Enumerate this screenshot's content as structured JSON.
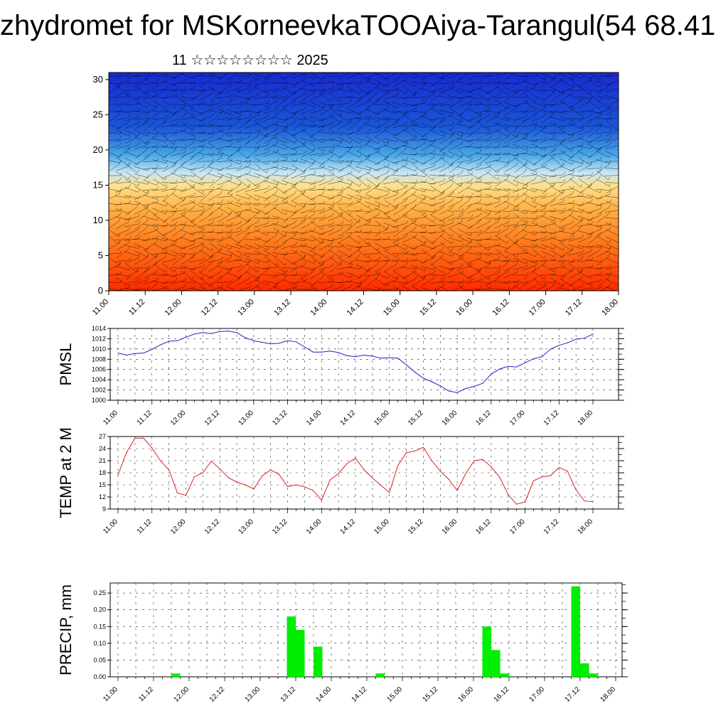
{
  "title": "zhydromet for MSKorneevkaTOOAiya-Tarangul(54 68.41",
  "subtitle": "11 ☆☆☆☆☆☆☆☆ 2025",
  "colors": {
    "pmsl_line": "#2222cc",
    "temp_line": "#dd2222",
    "precip_bar": "#00ee00",
    "grid": "#000000"
  },
  "x_tick_labels": [
    "11.00",
    "11.12",
    "12.00",
    "12.12",
    "13.00",
    "13.12",
    "14.00",
    "14.12",
    "15.00",
    "15.12",
    "16.00",
    "16.12",
    "17.00",
    "17.12",
    "18.00"
  ],
  "chart_data": [
    {
      "type": "heatmap",
      "subtitle_note": "",
      "y_ticks": [
        0,
        5,
        10,
        15,
        20,
        25,
        30
      ],
      "ylim": [
        0,
        31
      ],
      "x_range_hours": [
        0,
        168
      ],
      "x_tick_labels": [
        "11.00",
        "11.12",
        "12.00",
        "12.12",
        "13.00",
        "13.12",
        "14.00",
        "14.12",
        "15.00",
        "15.12",
        "16.00",
        "16.12",
        "17.00",
        "17.12",
        "18.00"
      ],
      "color_scale": [
        "#ff2a00",
        "#ff7a1a",
        "#ffb347",
        "#ffe08a",
        "#c8e6f5",
        "#4aa8e8",
        "#1a56d8",
        "#1a2ad0"
      ],
      "overlay": "wind barbs"
    },
    {
      "type": "line",
      "ylabel": "PMSL",
      "ylim": [
        1000,
        1014
      ],
      "y_ticks": [
        1000,
        1002,
        1004,
        1006,
        1008,
        1010,
        1012,
        1014
      ],
      "x_hours": [
        0,
        3,
        6,
        9,
        12,
        15,
        18,
        21,
        24,
        27,
        30,
        33,
        36,
        39,
        42,
        45,
        48,
        51,
        54,
        57,
        60,
        63,
        66,
        69,
        72,
        75,
        78,
        81,
        84,
        87,
        90,
        93,
        96,
        99,
        102,
        105,
        108,
        111,
        114,
        117,
        120,
        123,
        126,
        129,
        132,
        135,
        138,
        141,
        144,
        147,
        150,
        153,
        156,
        159,
        162,
        165,
        168
      ],
      "values": [
        1009.2,
        1008.8,
        1009.1,
        1009.2,
        1009.9,
        1010.8,
        1011.5,
        1011.6,
        1012.3,
        1012.9,
        1013.2,
        1013.0,
        1013.4,
        1013.5,
        1013.2,
        1012.2,
        1011.6,
        1011.3,
        1011.0,
        1011.1,
        1011.6,
        1011.4,
        1010.4,
        1009.4,
        1009.4,
        1009.6,
        1009.3,
        1008.7,
        1008.5,
        1008.8,
        1008.6,
        1008.2,
        1008.3,
        1008.2,
        1006.9,
        1005.5,
        1004.3,
        1003.6,
        1002.8,
        1001.8,
        1001.5,
        1002.3,
        1002.7,
        1003.3,
        1005.1,
        1006.1,
        1006.6,
        1006.5,
        1007.3,
        1008.1,
        1008.5,
        1010.0,
        1010.7,
        1011.2,
        1011.9,
        1012.1,
        1012.9
      ]
    },
    {
      "type": "line",
      "ylabel": "TEMP at 2 M",
      "ylim": [
        9,
        27
      ],
      "y_ticks": [
        9,
        12,
        15,
        18,
        21,
        24,
        27
      ],
      "x_hours": [
        0,
        3,
        6,
        9,
        12,
        15,
        18,
        21,
        24,
        27,
        30,
        33,
        36,
        39,
        42,
        45,
        48,
        51,
        54,
        57,
        60,
        63,
        66,
        69,
        72,
        75,
        78,
        81,
        84,
        87,
        90,
        93,
        96,
        99,
        102,
        105,
        108,
        111,
        114,
        117,
        120,
        123,
        126,
        129,
        132,
        135,
        138,
        141,
        144,
        147,
        150,
        153,
        156,
        159,
        162,
        165,
        168
      ],
      "values": [
        17.5,
        23.0,
        26.6,
        26.6,
        24.2,
        21.0,
        18.7,
        13.0,
        12.4,
        17.0,
        18.0,
        20.9,
        19.0,
        16.8,
        15.7,
        15.0,
        14.0,
        17.2,
        18.7,
        17.6,
        14.6,
        15.0,
        14.5,
        13.6,
        11.2,
        16.2,
        17.8,
        20.3,
        21.6,
        18.8,
        16.7,
        14.9,
        13.1,
        19.8,
        23.0,
        23.4,
        24.3,
        21.0,
        18.4,
        16.4,
        13.6,
        17.8,
        21.0,
        21.3,
        19.5,
        16.9,
        12.6,
        10.2,
        10.8,
        16.0,
        17.0,
        17.3,
        19.3,
        18.4,
        13.8,
        11.0,
        10.8
      ]
    },
    {
      "type": "bar",
      "ylabel": "PRECIP, mm",
      "ylim": [
        0,
        0.28
      ],
      "y_ticks": [
        0.0,
        0.05,
        0.1,
        0.15,
        0.2,
        0.25
      ],
      "bar_width_hours": 3,
      "x_hours": [
        18,
        57,
        60,
        66,
        87,
        123,
        126,
        129,
        153,
        156,
        159
      ],
      "values": [
        0.01,
        0.18,
        0.14,
        0.09,
        0.01,
        0.15,
        0.08,
        0.01,
        0.27,
        0.04,
        0.01
      ]
    }
  ]
}
